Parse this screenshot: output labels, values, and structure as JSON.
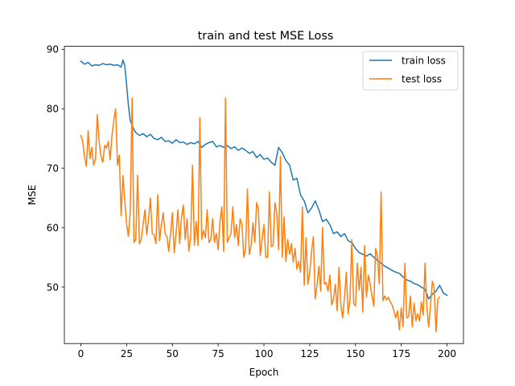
{
  "chart_data": {
    "type": "line",
    "title": "train and test MSE Loss",
    "xlabel": "Epoch",
    "ylabel": "MSE",
    "xlim": [
      -9,
      209
    ],
    "ylim": [
      40.5,
      90.5
    ],
    "xticks": [
      0,
      25,
      50,
      75,
      100,
      125,
      150,
      175,
      200
    ],
    "yticks": [
      50,
      60,
      70,
      80,
      90
    ],
    "grid": false,
    "legend_position": "top-right",
    "series": [
      {
        "name": "train loss",
        "color": "#1f77b4",
        "points": [
          [
            0,
            88.0
          ],
          [
            2,
            87.5
          ],
          [
            4,
            87.8
          ],
          [
            6,
            87.2
          ],
          [
            8,
            87.4
          ],
          [
            10,
            87.3
          ],
          [
            12,
            87.6
          ],
          [
            14,
            87.4
          ],
          [
            16,
            87.5
          ],
          [
            18,
            87.3
          ],
          [
            20,
            87.4
          ],
          [
            22,
            87.0
          ],
          [
            23,
            88.2
          ],
          [
            24,
            87.2
          ],
          [
            25,
            84.0
          ],
          [
            26,
            80.5
          ],
          [
            27,
            78.0
          ],
          [
            28,
            77.2
          ],
          [
            29,
            76.5
          ],
          [
            30,
            76.0
          ],
          [
            32,
            75.5
          ],
          [
            34,
            75.8
          ],
          [
            36,
            75.3
          ],
          [
            38,
            75.7
          ],
          [
            40,
            75.0
          ],
          [
            42,
            74.8
          ],
          [
            44,
            75.2
          ],
          [
            46,
            74.5
          ],
          [
            48,
            74.6
          ],
          [
            50,
            74.2
          ],
          [
            52,
            74.8
          ],
          [
            54,
            74.3
          ],
          [
            56,
            74.4
          ],
          [
            58,
            74.0
          ],
          [
            60,
            74.3
          ],
          [
            62,
            74.1
          ],
          [
            64,
            74.5
          ],
          [
            66,
            73.5
          ],
          [
            68,
            74.0
          ],
          [
            70,
            74.3
          ],
          [
            72,
            74.5
          ],
          [
            74,
            73.6
          ],
          [
            76,
            73.8
          ],
          [
            78,
            73.5
          ],
          [
            80,
            73.8
          ],
          [
            82,
            73.3
          ],
          [
            84,
            73.6
          ],
          [
            86,
            73.0
          ],
          [
            88,
            73.4
          ],
          [
            90,
            73.0
          ],
          [
            92,
            72.5
          ],
          [
            94,
            72.8
          ],
          [
            96,
            71.8
          ],
          [
            98,
            72.3
          ],
          [
            100,
            71.5
          ],
          [
            102,
            71.7
          ],
          [
            104,
            71.0
          ],
          [
            106,
            70.5
          ],
          [
            108,
            73.5
          ],
          [
            110,
            72.6
          ],
          [
            112,
            71.3
          ],
          [
            114,
            70.5
          ],
          [
            116,
            68.0
          ],
          [
            118,
            68.3
          ],
          [
            120,
            65.5
          ],
          [
            122,
            64.5
          ],
          [
            124,
            62.5
          ],
          [
            126,
            63.3
          ],
          [
            128,
            64.5
          ],
          [
            130,
            63.0
          ],
          [
            132,
            61.0
          ],
          [
            134,
            61.4
          ],
          [
            136,
            60.5
          ],
          [
            138,
            59.0
          ],
          [
            140,
            59.3
          ],
          [
            142,
            58.5
          ],
          [
            144,
            59.0
          ],
          [
            146,
            57.8
          ],
          [
            148,
            57.5
          ],
          [
            150,
            56.5
          ],
          [
            152,
            55.8
          ],
          [
            154,
            55.5
          ],
          [
            156,
            55.2
          ],
          [
            158,
            55.6
          ],
          [
            160,
            55.0
          ],
          [
            162,
            54.5
          ],
          [
            164,
            54.0
          ],
          [
            166,
            53.5
          ],
          [
            168,
            53.2
          ],
          [
            170,
            52.8
          ],
          [
            172,
            52.5
          ],
          [
            174,
            52.3
          ],
          [
            176,
            51.7
          ],
          [
            178,
            51.2
          ],
          [
            180,
            51.0
          ],
          [
            182,
            50.6
          ],
          [
            184,
            50.4
          ],
          [
            186,
            50.0
          ],
          [
            188,
            49.6
          ],
          [
            190,
            48.0
          ],
          [
            192,
            48.8
          ],
          [
            194,
            49.3
          ],
          [
            196,
            50.3
          ],
          [
            198,
            49.0
          ],
          [
            199,
            48.8
          ],
          [
            200,
            48.6
          ]
        ]
      },
      {
        "name": "test loss",
        "color": "#ff7f0e",
        "points": [
          [
            0,
            75.5
          ],
          [
            1,
            74.5
          ],
          [
            2,
            72.0
          ],
          [
            3,
            70.3
          ],
          [
            4,
            76.3
          ],
          [
            5,
            71.6
          ],
          [
            6,
            73.5
          ],
          [
            7,
            70.5
          ],
          [
            8,
            71.5
          ],
          [
            9,
            79.0
          ],
          [
            10,
            74.5
          ],
          [
            11,
            72.0
          ],
          [
            12,
            71.0
          ],
          [
            13,
            73.8
          ],
          [
            14,
            73.4
          ],
          [
            15,
            74.5
          ],
          [
            16,
            71.4
          ],
          [
            17,
            75.5
          ],
          [
            18,
            78.0
          ],
          [
            19,
            80.0
          ],
          [
            20,
            70.5
          ],
          [
            21,
            72.2
          ],
          [
            22,
            62.0
          ],
          [
            23,
            68.8
          ],
          [
            24,
            64.5
          ],
          [
            25,
            60.5
          ],
          [
            26,
            58.5
          ],
          [
            27,
            63.0
          ],
          [
            28,
            81.8
          ],
          [
            29,
            57.5
          ],
          [
            30,
            58.0
          ],
          [
            31,
            68.8
          ],
          [
            32,
            57.3
          ],
          [
            33,
            58.0
          ],
          [
            34,
            60.5
          ],
          [
            35,
            63.0
          ],
          [
            36,
            58.8
          ],
          [
            37,
            61.5
          ],
          [
            38,
            65.0
          ],
          [
            39,
            59.0
          ],
          [
            40,
            58.8
          ],
          [
            41,
            57.3
          ],
          [
            42,
            65.5
          ],
          [
            43,
            57.8
          ],
          [
            44,
            60.5
          ],
          [
            45,
            62.5
          ],
          [
            46,
            59.0
          ],
          [
            47,
            58.5
          ],
          [
            48,
            56.0
          ],
          [
            49,
            59.0
          ],
          [
            50,
            62.5
          ],
          [
            51,
            55.8
          ],
          [
            52,
            59.0
          ],
          [
            53,
            63.0
          ],
          [
            54,
            57.3
          ],
          [
            55,
            61.8
          ],
          [
            56,
            63.8
          ],
          [
            57,
            58.0
          ],
          [
            58,
            61.5
          ],
          [
            59,
            56.0
          ],
          [
            60,
            58.5
          ],
          [
            61,
            70.5
          ],
          [
            62,
            57.0
          ],
          [
            63,
            61.0
          ],
          [
            64,
            57.0
          ],
          [
            65,
            78.5
          ],
          [
            66,
            58.0
          ],
          [
            67,
            59.5
          ],
          [
            68,
            58.3
          ],
          [
            69,
            63.0
          ],
          [
            70,
            57.5
          ],
          [
            71,
            58.0
          ],
          [
            72,
            61.5
          ],
          [
            73,
            57.5
          ],
          [
            74,
            59.0
          ],
          [
            75,
            56.3
          ],
          [
            76,
            61.0
          ],
          [
            77,
            63.5
          ],
          [
            78,
            56.0
          ],
          [
            79,
            81.8
          ],
          [
            80,
            57.5
          ],
          [
            81,
            58.3
          ],
          [
            82,
            59.0
          ],
          [
            83,
            63.5
          ],
          [
            84,
            58.3
          ],
          [
            85,
            60.5
          ],
          [
            86,
            57.0
          ],
          [
            87,
            61.5
          ],
          [
            88,
            60.5
          ],
          [
            89,
            55.0
          ],
          [
            90,
            56.5
          ],
          [
            91,
            66.5
          ],
          [
            92,
            55.5
          ],
          [
            93,
            57.0
          ],
          [
            94,
            60.8
          ],
          [
            95,
            57.5
          ],
          [
            96,
            64.2
          ],
          [
            97,
            63.0
          ],
          [
            98,
            55.3
          ],
          [
            99,
            58.0
          ],
          [
            100,
            60.5
          ],
          [
            101,
            55.0
          ],
          [
            102,
            55.0
          ],
          [
            103,
            66.0
          ],
          [
            104,
            56.8
          ],
          [
            105,
            57.0
          ],
          [
            106,
            64.2
          ],
          [
            107,
            62.5
          ],
          [
            108,
            56.3
          ],
          [
            109,
            72.0
          ],
          [
            110,
            55.0
          ],
          [
            111,
            61.8
          ],
          [
            112,
            54.3
          ],
          [
            113,
            58.0
          ],
          [
            114,
            55.5
          ],
          [
            115,
            57.3
          ],
          [
            116,
            54.2
          ],
          [
            117,
            56.5
          ],
          [
            118,
            53.0
          ],
          [
            119,
            54.3
          ],
          [
            120,
            52.5
          ],
          [
            121,
            63.5
          ],
          [
            122,
            50.3
          ],
          [
            123,
            58.3
          ],
          [
            124,
            50.5
          ],
          [
            125,
            52.3
          ],
          [
            126,
            56.0
          ],
          [
            127,
            58.5
          ],
          [
            128,
            48.0
          ],
          [
            129,
            50.3
          ],
          [
            130,
            53.5
          ],
          [
            131,
            49.3
          ],
          [
            132,
            60.0
          ],
          [
            133,
            50.5
          ],
          [
            134,
            50.8
          ],
          [
            135,
            49.3
          ],
          [
            136,
            52.0
          ],
          [
            137,
            47.0
          ],
          [
            138,
            48.0
          ],
          [
            139,
            50.5
          ],
          [
            140,
            46.0
          ],
          [
            141,
            53.3
          ],
          [
            142,
            47.0
          ],
          [
            143,
            44.8
          ],
          [
            144,
            48.3
          ],
          [
            145,
            52.5
          ],
          [
            146,
            45.5
          ],
          [
            147,
            47.8
          ],
          [
            148,
            58.0
          ],
          [
            149,
            47.3
          ],
          [
            150,
            46.8
          ],
          [
            151,
            54.0
          ],
          [
            152,
            49.5
          ],
          [
            153,
            53.3
          ],
          [
            154,
            45.8
          ],
          [
            155,
            57.0
          ],
          [
            156,
            48.3
          ],
          [
            157,
            52.0
          ],
          [
            158,
            50.5
          ],
          [
            159,
            48.5
          ],
          [
            160,
            46.8
          ],
          [
            161,
            56.5
          ],
          [
            162,
            55.3
          ],
          [
            163,
            50.5
          ],
          [
            164,
            66.0
          ],
          [
            165,
            47.7
          ],
          [
            166,
            48.5
          ],
          [
            167,
            47.8
          ],
          [
            168,
            48.3
          ],
          [
            169,
            47.5
          ],
          [
            170,
            47.0
          ],
          [
            171,
            46.0
          ],
          [
            172,
            44.8
          ],
          [
            173,
            46.0
          ],
          [
            174,
            42.8
          ],
          [
            175,
            46.5
          ],
          [
            176,
            43.3
          ],
          [
            177,
            54.0
          ],
          [
            178,
            44.8
          ],
          [
            179,
            45.0
          ],
          [
            180,
            48.5
          ],
          [
            181,
            43.3
          ],
          [
            182,
            47.3
          ],
          [
            183,
            44.3
          ],
          [
            184,
            45.5
          ],
          [
            185,
            44.3
          ],
          [
            186,
            47.5
          ],
          [
            187,
            45.3
          ],
          [
            188,
            54.0
          ],
          [
            189,
            46.5
          ],
          [
            190,
            43.3
          ],
          [
            191,
            47.0
          ],
          [
            192,
            51.0
          ],
          [
            193,
            49.8
          ],
          [
            194,
            42.5
          ],
          [
            195,
            48.0
          ],
          [
            196,
            48.3
          ]
        ]
      }
    ]
  }
}
